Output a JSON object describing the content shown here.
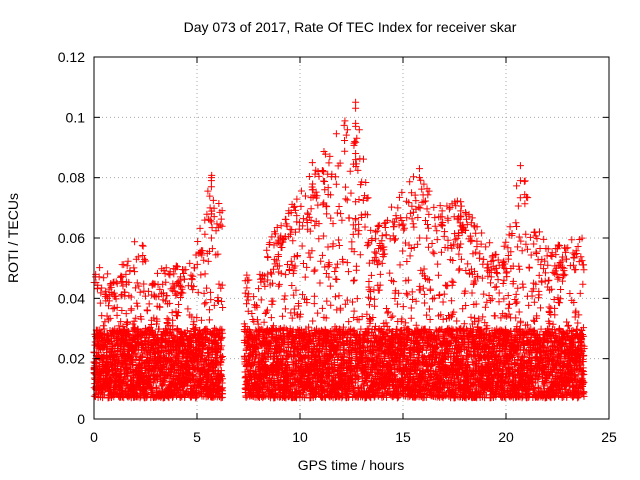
{
  "chart_data": {
    "type": "scatter",
    "title": "Day 073 of 2017, Rate Of TEC Index for receiver skar",
    "xlabel": "GPS time / hours",
    "ylabel": "ROTI / TECUs",
    "xlim": [
      0,
      25
    ],
    "ylim": [
      0,
      0.12
    ],
    "xticks": [
      "0",
      "5",
      "10",
      "15",
      "20",
      "25"
    ],
    "yticks": [
      "0",
      "0.02",
      "0.04",
      "0.06",
      "0.08",
      "0.1",
      "0.12"
    ],
    "grid": true,
    "marker": "+",
    "color": "#ff0000",
    "coverage": [
      {
        "start": 0.0,
        "end": 6.25
      },
      {
        "start": 7.3,
        "end": 23.8
      }
    ],
    "baseline_range": [
      0.007,
      0.03
    ],
    "envelope": [
      {
        "x": 0.2,
        "y": 0.052
      },
      {
        "x": 1.0,
        "y": 0.047
      },
      {
        "x": 2.2,
        "y": 0.062
      },
      {
        "x": 2.7,
        "y": 0.05
      },
      {
        "x": 4.8,
        "y": 0.052
      },
      {
        "x": 5.7,
        "y": 0.081
      },
      {
        "x": 7.8,
        "y": 0.042
      },
      {
        "x": 8.5,
        "y": 0.059
      },
      {
        "x": 10.7,
        "y": 0.085
      },
      {
        "x": 12.8,
        "y": 0.105
      },
      {
        "x": 13.5,
        "y": 0.062
      },
      {
        "x": 15.8,
        "y": 0.083
      },
      {
        "x": 16.9,
        "y": 0.07
      },
      {
        "x": 17.8,
        "y": 0.073
      },
      {
        "x": 19.8,
        "y": 0.054
      },
      {
        "x": 20.7,
        "y": 0.084
      },
      {
        "x": 22.0,
        "y": 0.057
      },
      {
        "x": 23.3,
        "y": 0.06
      }
    ],
    "spikes": [
      {
        "x": 5.7,
        "values": [
          0.08,
          0.079,
          0.077,
          0.068,
          0.06
        ]
      },
      {
        "x": 10.6,
        "values": [
          0.085,
          0.076
        ]
      },
      {
        "x": 12.7,
        "values": [
          0.105,
          0.103,
          0.098,
          0.097,
          0.088,
          0.086,
          0.072,
          0.066,
          0.063
        ]
      },
      {
        "x": 15.8,
        "values": [
          0.083,
          0.08
        ]
      },
      {
        "x": 16.9,
        "values": [
          0.069,
          0.067,
          0.064
        ]
      },
      {
        "x": 17.8,
        "values": [
          0.072,
          0.069,
          0.064,
          0.058
        ]
      },
      {
        "x": 20.7,
        "values": [
          0.084,
          0.079
        ]
      }
    ]
  }
}
